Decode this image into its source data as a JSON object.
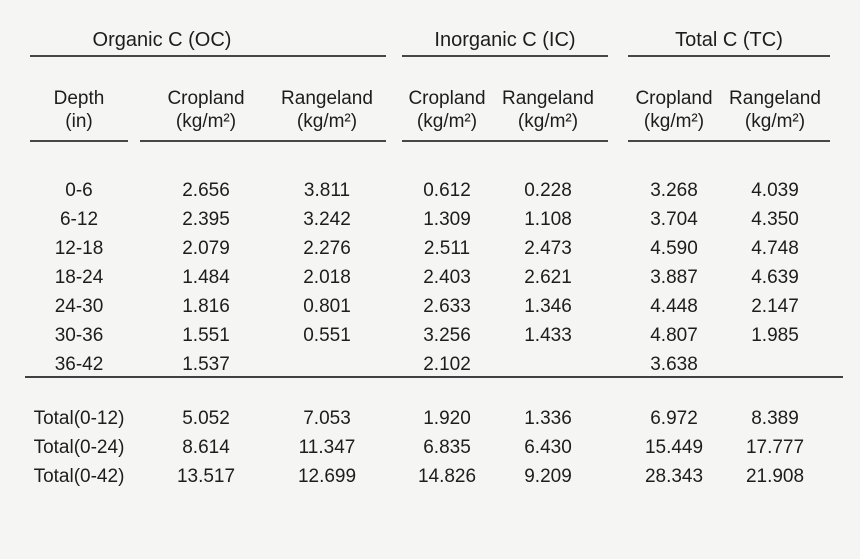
{
  "page": {
    "background_color": "#f5f5f4",
    "text_color": "#1d1d1d",
    "rule_color": "#474747"
  },
  "chart_data": {
    "type": "table",
    "sections": [
      "Organic C (OC)",
      "Inorganic C (IC)",
      "Total C (TC)"
    ],
    "columns": {
      "depth": {
        "line1": "Depth",
        "line2": "(in)"
      },
      "cropland": "Cropland",
      "rangeland": "Rangeland",
      "unit": "(kg/m²)"
    },
    "rows": [
      {
        "depth": "0-6",
        "values": [
          "2.656",
          "3.811",
          "0.612",
          "0.228",
          "3.268",
          "4.039"
        ]
      },
      {
        "depth": "6-12",
        "values": [
          "2.395",
          "3.242",
          "1.309",
          "1.108",
          "3.704",
          "4.350"
        ]
      },
      {
        "depth": "12-18",
        "values": [
          "2.079",
          "2.276",
          "2.511",
          "2.473",
          "4.590",
          "4.748"
        ]
      },
      {
        "depth": "18-24",
        "values": [
          "1.484",
          "2.018",
          "2.403",
          "2.621",
          "3.887",
          "4.639"
        ]
      },
      {
        "depth": "24-30",
        "values": [
          "1.816",
          "0.801",
          "2.633",
          "1.346",
          "4.448",
          "2.147"
        ]
      },
      {
        "depth": "30-36",
        "values": [
          "1.551",
          "0.551",
          "3.256",
          "1.433",
          "4.807",
          "1.985"
        ]
      },
      {
        "depth": "36-42",
        "values": [
          "1.537",
          "",
          "2.102",
          "",
          "3.638",
          ""
        ]
      }
    ],
    "total_rows": [
      {
        "depth": "Total(0-12)",
        "values": [
          "5.052",
          "7.053",
          "1.920",
          "1.336",
          "6.972",
          "8.389"
        ]
      },
      {
        "depth": "Total(0-24)",
        "values": [
          "8.614",
          "11.347",
          "6.835",
          "6.430",
          "15.449",
          "17.777"
        ]
      },
      {
        "depth": "Total(0-42)",
        "values": [
          "13.517",
          "12.699",
          "14.826",
          "9.209",
          "28.343",
          "21.908"
        ]
      }
    ]
  }
}
